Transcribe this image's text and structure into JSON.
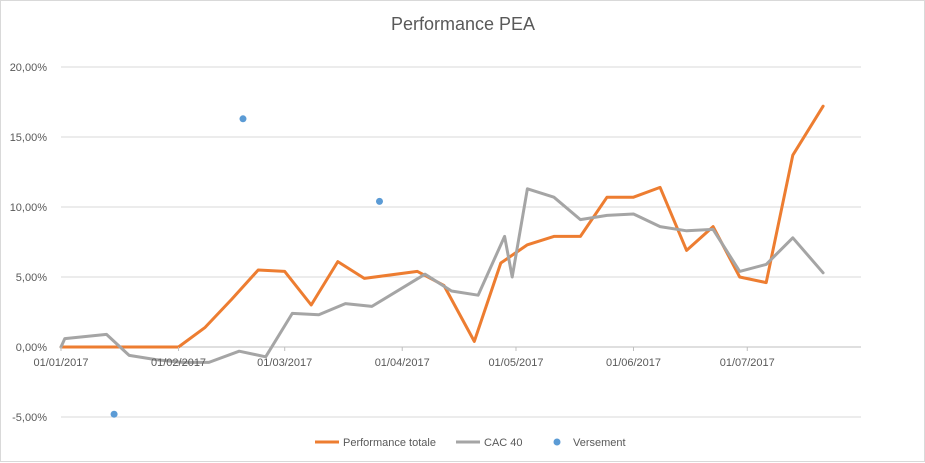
{
  "chart_data": {
    "type": "line",
    "title": "Performance PEA",
    "xlabel": "",
    "ylabel": "",
    "ylim": [
      -0.05,
      0.2
    ],
    "y_ticks": [
      {
        "value": -0.05,
        "label": "-5,00%"
      },
      {
        "value": 0.0,
        "label": "0,00%"
      },
      {
        "value": 0.05,
        "label": "5,00%"
      },
      {
        "value": 0.1,
        "label": "10,00%"
      },
      {
        "value": 0.15,
        "label": "15,00%"
      },
      {
        "value": 0.2,
        "label": "20,00%"
      }
    ],
    "xlim": [
      "2017-01-01",
      "2017-07-31"
    ],
    "x_ticks": [
      {
        "value": "2017-01-01",
        "label": "01/01/2017"
      },
      {
        "value": "2017-02-01",
        "label": "01/02/2017"
      },
      {
        "value": "2017-03-01",
        "label": "01/03/2017"
      },
      {
        "value": "2017-04-01",
        "label": "01/04/2017"
      },
      {
        "value": "2017-05-01",
        "label": "01/05/2017"
      },
      {
        "value": "2017-06-01",
        "label": "01/06/2017"
      },
      {
        "value": "2017-07-01",
        "label": "01/07/2017"
      }
    ],
    "grid": true,
    "legend_position": "bottom",
    "series": [
      {
        "name": "Performance totale",
        "color": "#ed7d31",
        "kind": "line",
        "points": [
          {
            "x": "2017-01-01",
            "y": 0.0
          },
          {
            "x": "2017-02-01",
            "y": 0.0
          },
          {
            "x": "2017-02-08",
            "y": 0.014
          },
          {
            "x": "2017-02-15",
            "y": 0.034
          },
          {
            "x": "2017-02-22",
            "y": 0.055
          },
          {
            "x": "2017-03-01",
            "y": 0.054
          },
          {
            "x": "2017-03-08",
            "y": 0.03
          },
          {
            "x": "2017-03-15",
            "y": 0.061
          },
          {
            "x": "2017-03-22",
            "y": 0.049
          },
          {
            "x": "2017-04-05",
            "y": 0.054
          },
          {
            "x": "2017-04-12",
            "y": 0.044
          },
          {
            "x": "2017-04-20",
            "y": 0.004
          },
          {
            "x": "2017-04-27",
            "y": 0.06
          },
          {
            "x": "2017-05-04",
            "y": 0.073
          },
          {
            "x": "2017-05-11",
            "y": 0.079
          },
          {
            "x": "2017-05-18",
            "y": 0.079
          },
          {
            "x": "2017-05-25",
            "y": 0.107
          },
          {
            "x": "2017-06-01",
            "y": 0.107
          },
          {
            "x": "2017-06-08",
            "y": 0.114
          },
          {
            "x": "2017-06-15",
            "y": 0.069
          },
          {
            "x": "2017-06-22",
            "y": 0.086
          },
          {
            "x": "2017-06-29",
            "y": 0.05
          },
          {
            "x": "2017-07-06",
            "y": 0.046
          },
          {
            "x": "2017-07-13",
            "y": 0.137
          },
          {
            "x": "2017-07-21",
            "y": 0.172
          }
        ]
      },
      {
        "name": "CAC 40",
        "color": "#a5a5a5",
        "kind": "line",
        "points": [
          {
            "x": "2017-01-01",
            "y": 0.0
          },
          {
            "x": "2017-01-02",
            "y": 0.006
          },
          {
            "x": "2017-01-13",
            "y": 0.009
          },
          {
            "x": "2017-01-19",
            "y": -0.006
          },
          {
            "x": "2017-01-26",
            "y": -0.009
          },
          {
            "x": "2017-02-02",
            "y": -0.011
          },
          {
            "x": "2017-02-09",
            "y": -0.011
          },
          {
            "x": "2017-02-17",
            "y": -0.003
          },
          {
            "x": "2017-02-24",
            "y": -0.007
          },
          {
            "x": "2017-03-03",
            "y": 0.024
          },
          {
            "x": "2017-03-10",
            "y": 0.023
          },
          {
            "x": "2017-03-17",
            "y": 0.031
          },
          {
            "x": "2017-03-24",
            "y": 0.029
          },
          {
            "x": "2017-04-07",
            "y": 0.052
          },
          {
            "x": "2017-04-14",
            "y": 0.04
          },
          {
            "x": "2017-04-21",
            "y": 0.037
          },
          {
            "x": "2017-04-28",
            "y": 0.079
          },
          {
            "x": "2017-04-30",
            "y": 0.05
          },
          {
            "x": "2017-05-04",
            "y": 0.113
          },
          {
            "x": "2017-05-11",
            "y": 0.107
          },
          {
            "x": "2017-05-18",
            "y": 0.091
          },
          {
            "x": "2017-05-25",
            "y": 0.094
          },
          {
            "x": "2017-06-01",
            "y": 0.095
          },
          {
            "x": "2017-06-08",
            "y": 0.086
          },
          {
            "x": "2017-06-15",
            "y": 0.083
          },
          {
            "x": "2017-06-22",
            "y": 0.084
          },
          {
            "x": "2017-06-29",
            "y": 0.054
          },
          {
            "x": "2017-07-06",
            "y": 0.059
          },
          {
            "x": "2017-07-13",
            "y": 0.078
          },
          {
            "x": "2017-07-21",
            "y": 0.053
          }
        ]
      },
      {
        "name": "Versement",
        "color": "#5b9bd5",
        "kind": "scatter",
        "points": [
          {
            "x": "2017-01-15",
            "y": -0.048
          },
          {
            "x": "2017-02-18",
            "y": 0.163
          },
          {
            "x": "2017-03-26",
            "y": 0.104
          }
        ]
      }
    ]
  }
}
